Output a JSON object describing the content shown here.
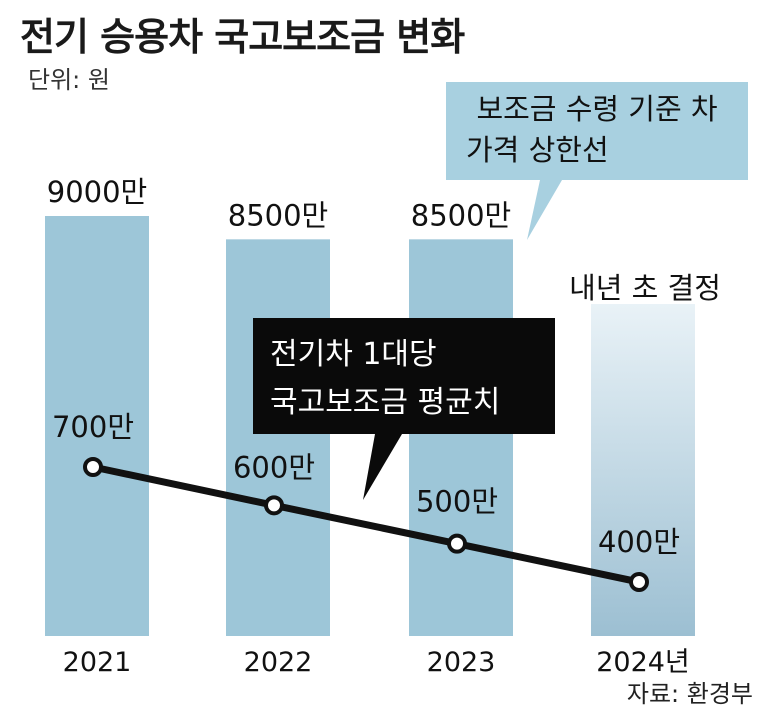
{
  "title": "전기 승용차 국고보조금 변화",
  "unit": "단위: 원",
  "source": "자료: 환경부",
  "callout_price_cap": {
    "line1": "보조금 수령 기준 차",
    "line2": "가격 상한선"
  },
  "callout_avg_subsidy": {
    "line1": "전기차 1대당",
    "line2": "국고보조금 평균치"
  },
  "colors": {
    "bar": "#9dc6d8",
    "bar_last_top": "#e9f2f7",
    "bar_last_bottom": "#9cbfd2",
    "callout_blue": "#a8d0e0",
    "callout_dark": "#0a0a0a",
    "line": "#111111"
  },
  "chart_data": {
    "type": "bar+line",
    "categories": [
      "2021",
      "2022",
      "2023",
      "2024년"
    ],
    "series": [
      {
        "name": "보조금 수령 기준 차 가격 상한선",
        "type": "bar",
        "values": [
          90000000,
          85000000,
          85000000,
          null
        ],
        "labels": [
          "9000만",
          "8500만",
          "8500만",
          "내년 초 결정"
        ]
      },
      {
        "name": "전기차 1대당 국고보조금 평균치",
        "type": "line",
        "values": [
          7000000,
          6000000,
          5000000,
          4000000
        ],
        "labels": [
          "700만",
          "600만",
          "500만",
          "400만"
        ]
      }
    ]
  }
}
